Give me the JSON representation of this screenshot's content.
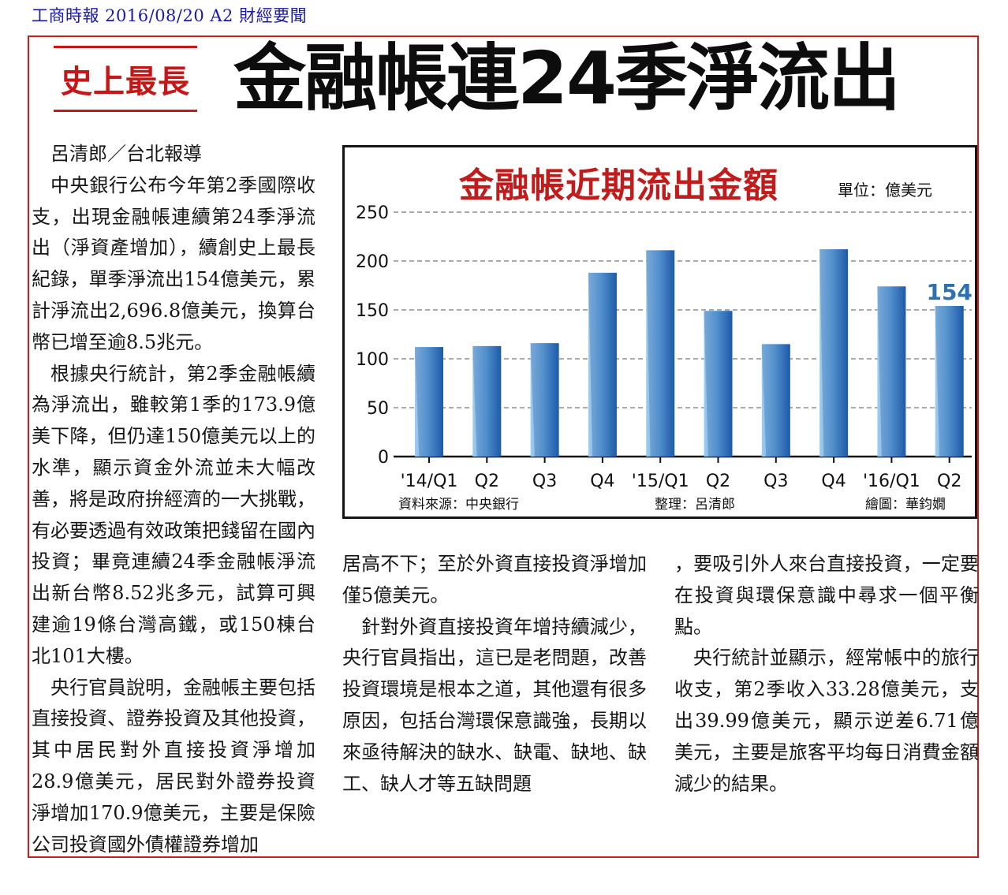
{
  "source_line": "工商時報 2016/08/20 A2 財經要聞",
  "kicker": "史上最長",
  "headline": "金融帳連24季淨流出",
  "byline": "呂清郎／台北報導",
  "col1": {
    "p1": "中央銀行公布今年第2季國際收支，出現金融帳連續第24季淨流出（淨資產增加），續創史上最長紀錄，單季淨流出154億美元，累計淨流出2,696.8億美元，換算台幣已增至逾8.5兆元。",
    "p2": "根據央行統計，第2季金融帳續為淨流出，雖較第1季的173.9億美下降，但仍達150億美元以上的水準，顯示資金外流並未大幅改善，將是政府拚經濟的一大挑戰，有必要透過有效政策把錢留在國內投資；畢竟連續24季金融帳淨流出新台幣8.52兆多元，試算可興建逾19條台灣高鐵，或150棟台北101大樓。",
    "p3": "央行官員說明，金融帳主要包括直接投資、證券投資及其他投資，其中居民對外直接投資淨增加28.9億美元，居民對外證券投資淨增加170.9億美元，主要是保險公司投資國外債權證券增加"
  },
  "col2": {
    "p1": "居高不下；至於外資直接投資淨增加僅5億美元。",
    "p2": "針對外資直接投資年增持續減少，央行官員指出，這已是老問題，改善投資環境是根本之道，其他還有很多原因，包括台灣環保意識強，長期以來亟待解決的缺水、缺電、缺地、缺工、缺人才等五缺問題"
  },
  "col3": {
    "p1": "，要吸引外人來台直接投資，一定要在投資與環保意識中尋求一個平衡點。",
    "p2": "央行統計並顯示，經常帳中的旅行收支，第2季收入33.28億美元，支出39.99億美元，顯示逆差6.71億美元，主要是旅客平均每日消費金額減少的結果。"
  },
  "chart": {
    "unit": "單位：億美元",
    "credits": {
      "source": "資料來源：中央銀行",
      "editor": "整理：呂清郎",
      "artist": "繪圖：華鈞嫺"
    }
  },
  "colors": {
    "red": "#c41818",
    "bar_light": "#bfe0f6",
    "bar_dark": "#1f63b0",
    "label_blue": "#2f6fb3"
  },
  "chart_data": {
    "type": "bar",
    "title": "金融帳近期流出金額",
    "categories": [
      "'14/Q1",
      "Q2",
      "Q3",
      "Q4",
      "'15/Q1",
      "Q2",
      "Q3",
      "Q4",
      "'16/Q1",
      "Q2"
    ],
    "values": [
      112,
      113,
      116,
      188,
      211,
      149,
      115,
      212,
      174,
      154
    ],
    "data_labels": [
      null,
      null,
      null,
      null,
      null,
      null,
      null,
      null,
      null,
      "154"
    ],
    "ylim": [
      0,
      250
    ],
    "yticks": [
      0,
      50,
      100,
      150,
      200,
      250
    ],
    "grid": true,
    "xlabel": "",
    "ylabel": ""
  }
}
